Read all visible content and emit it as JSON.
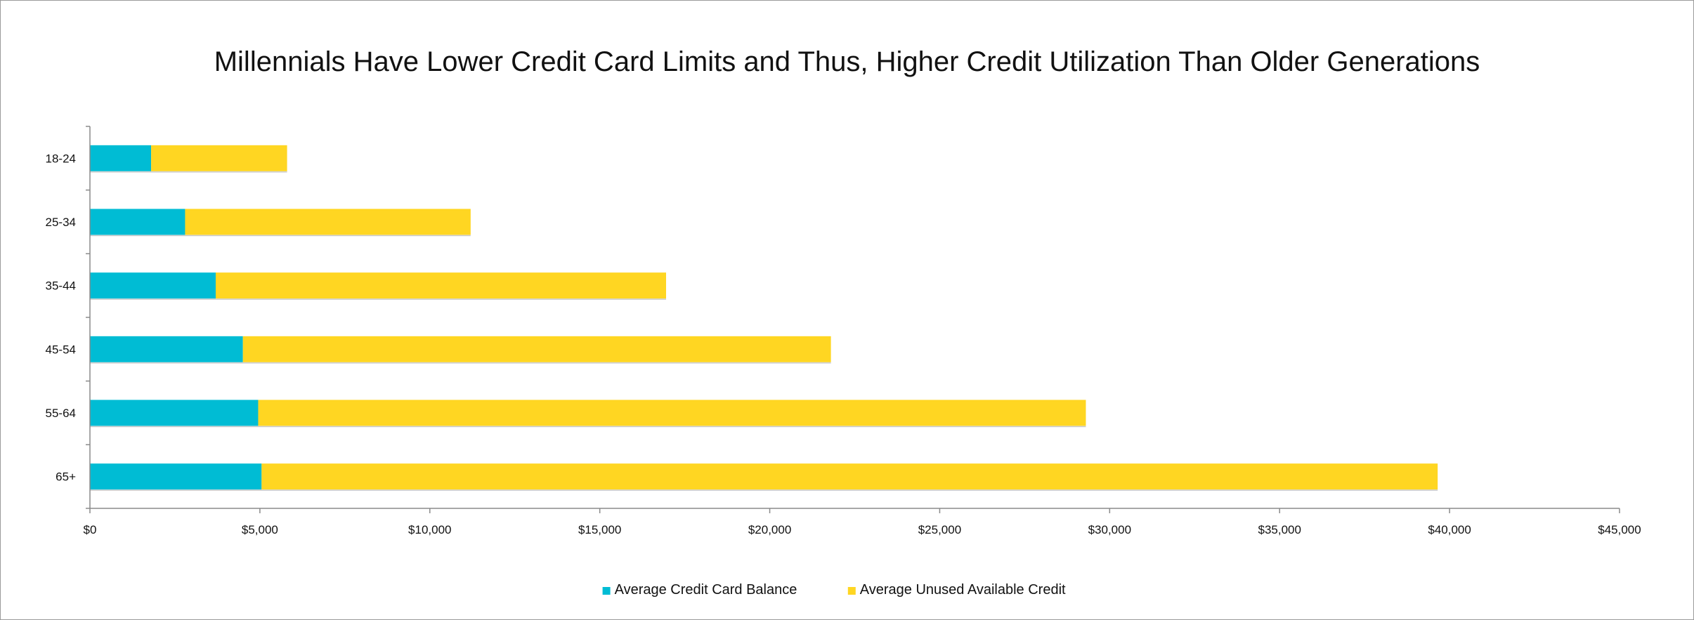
{
  "chart_data": {
    "type": "bar",
    "orientation": "horizontal",
    "stacked": true,
    "title": "Millennials Have Lower Credit Card Limits and Thus, Higher Credit Utilization Than Older Generations",
    "categories": [
      "18-24",
      "25-34",
      "35-44",
      "45-54",
      "55-64",
      "65+"
    ],
    "series": [
      {
        "name": "Average Credit Card Balance",
        "color": "#00BCD4",
        "values": [
          1800,
          2800,
          3700,
          4500,
          4950,
          5050
        ]
      },
      {
        "name": "Average Unused Available Credit",
        "color": "#FFD622",
        "values": [
          4000,
          8400,
          13250,
          17300,
          24350,
          34600
        ]
      }
    ],
    "xlim": [
      0,
      45000
    ],
    "xticks": [
      0,
      5000,
      10000,
      15000,
      20000,
      25000,
      30000,
      35000,
      40000,
      45000
    ],
    "xtick_labels": [
      "$0",
      "$5,000",
      "$10,000",
      "$15,000",
      "$20,000",
      "$25,000",
      "$30,000",
      "$35,000",
      "$40,000",
      "$45,000"
    ],
    "grid": false,
    "legend_position": "bottom"
  }
}
